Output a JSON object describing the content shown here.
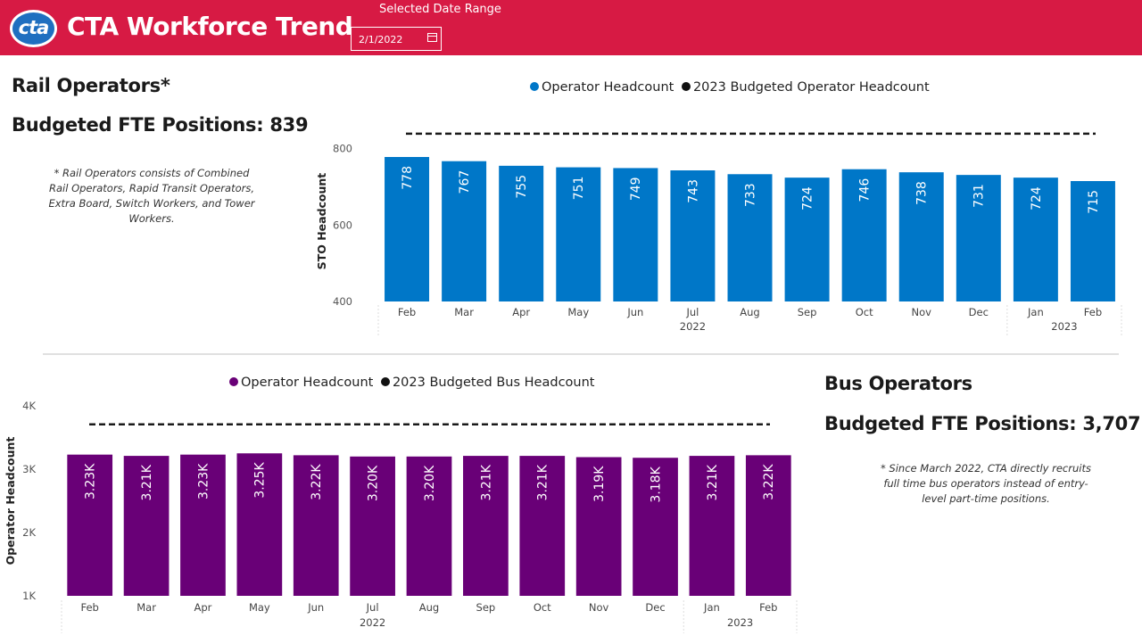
{
  "header": {
    "logo_text": "cta",
    "title": "CTA Workforce Trend",
    "date_range_label": "Selected Date Range",
    "date_value": "2/1/2022"
  },
  "rail": {
    "title": "Rail Operators*",
    "budget": "Budgeted FTE Positions: 839",
    "note_lines": [
      "* Rail Operators consists of Combined",
      "Rail Operators, Rapid Transit Operators,",
      "Extra Board, Switch Workers, and Tower",
      "Workers."
    ]
  },
  "bus": {
    "title": "Bus Operators",
    "budget": "Budgeted FTE Positions: 3,707",
    "note_lines": [
      "* Since March 2022, CTA directly recruits",
      "full time bus operators instead of entry-",
      "level part-time positions."
    ]
  },
  "colors": {
    "header": "#d71a44",
    "rail_bar": "#0077c8",
    "bus_bar": "#690077",
    "budget_line": "#1a1a1a"
  },
  "chart_data": [
    {
      "type": "bar",
      "name": "rail-chart",
      "legend": [
        "Operator Headcount",
        "2023 Budgeted Operator Headcount"
      ],
      "ylabel": "STO Headcount",
      "ylim": [
        400,
        820
      ],
      "yticks": [
        400,
        600,
        800
      ],
      "ytick_labels": [
        "400",
        "600",
        "800"
      ],
      "categories": [
        "Feb",
        "Mar",
        "Apr",
        "May",
        "Jun",
        "Jul",
        "Aug",
        "Sep",
        "Oct",
        "Nov",
        "Dec",
        "Jan",
        "Feb"
      ],
      "year_groups": [
        {
          "label": "2022",
          "start": 0,
          "end": 10
        },
        {
          "label": "2023",
          "start": 11,
          "end": 12
        }
      ],
      "values": [
        778,
        767,
        755,
        751,
        749,
        743,
        733,
        724,
        746,
        738,
        731,
        724,
        715
      ],
      "data_labels": [
        "778",
        "767",
        "755",
        "751",
        "749",
        "743",
        "733",
        "724",
        "746",
        "738",
        "731",
        "724",
        "715"
      ],
      "budget_value": 839,
      "color": "#0077c8"
    },
    {
      "type": "bar",
      "name": "bus-chart",
      "legend": [
        "Operator Headcount",
        "2023 Budgeted Bus Headcount"
      ],
      "ylabel": "Operator Headcount",
      "ylim": [
        1000,
        4000
      ],
      "yticks": [
        1000,
        2000,
        3000,
        4000
      ],
      "ytick_labels": [
        "1K",
        "2K",
        "3K",
        "4K"
      ],
      "categories": [
        "Feb",
        "Mar",
        "Apr",
        "May",
        "Jun",
        "Jul",
        "Aug",
        "Sep",
        "Oct",
        "Nov",
        "Dec",
        "Jan",
        "Feb"
      ],
      "year_groups": [
        {
          "label": "2022",
          "start": 0,
          "end": 10
        },
        {
          "label": "2023",
          "start": 11,
          "end": 12
        }
      ],
      "values": [
        3230,
        3210,
        3230,
        3250,
        3220,
        3200,
        3200,
        3210,
        3210,
        3190,
        3180,
        3210,
        3220
      ],
      "data_labels": [
        "3.23K",
        "3.21K",
        "3.23K",
        "3.25K",
        "3.22K",
        "3.20K",
        "3.20K",
        "3.21K",
        "3.21K",
        "3.19K",
        "3.18K",
        "3.21K",
        "3.22K"
      ],
      "budget_value": 3707,
      "color": "#690077"
    }
  ]
}
